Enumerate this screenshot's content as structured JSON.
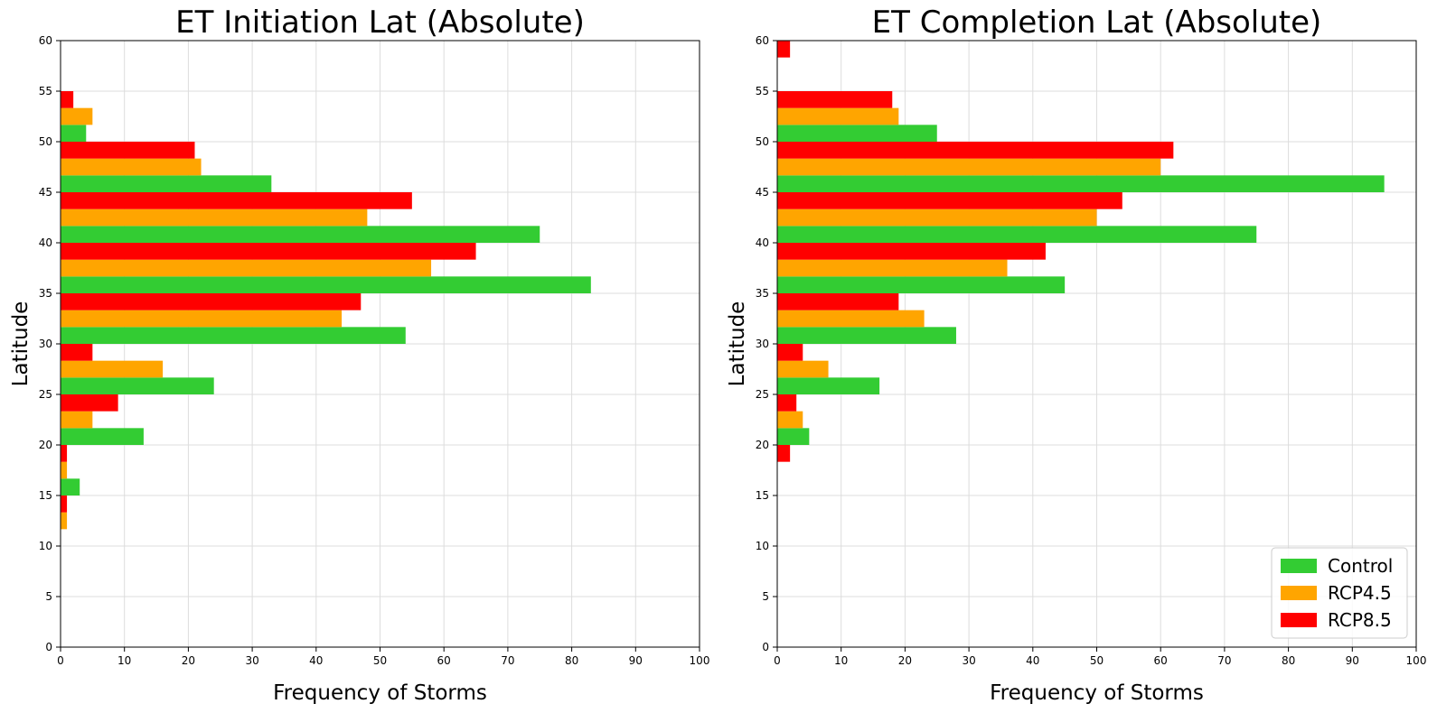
{
  "chart_data": [
    {
      "type": "bar",
      "orientation": "horizontal",
      "title": "ET Initiation Lat (Absolute)",
      "xlabel": "Frequency of Storms",
      "ylabel": "Latitude",
      "xlim": [
        0,
        100
      ],
      "ylim": [
        0,
        60
      ],
      "xticks": [
        0,
        10,
        20,
        30,
        40,
        50,
        60,
        70,
        80,
        90,
        100
      ],
      "yticks": [
        0,
        5,
        10,
        15,
        20,
        25,
        30,
        35,
        40,
        45,
        50,
        55,
        60
      ],
      "grid": true,
      "legend": null,
      "bin_width": 5,
      "bin_starts": [
        10,
        15,
        20,
        25,
        30,
        35,
        40,
        45,
        50,
        55
      ],
      "series": [
        {
          "name": "Control",
          "color": "#33cc33",
          "values": [
            0,
            3,
            13,
            24,
            54,
            83,
            75,
            33,
            4,
            0
          ]
        },
        {
          "name": "RCP4.5",
          "color": "#ffa500",
          "values": [
            1,
            1,
            5,
            16,
            44,
            58,
            48,
            22,
            5,
            0
          ]
        },
        {
          "name": "RCP8.5",
          "color": "#ff0000",
          "values": [
            1,
            1,
            9,
            5,
            47,
            65,
            55,
            21,
            2,
            0
          ]
        }
      ]
    },
    {
      "type": "bar",
      "orientation": "horizontal",
      "title": "ET Completion Lat (Absolute)",
      "xlabel": "Frequency of Storms",
      "ylabel": "Latitude",
      "xlim": [
        0,
        100
      ],
      "ylim": [
        0,
        60
      ],
      "xticks": [
        0,
        10,
        20,
        30,
        40,
        50,
        60,
        70,
        80,
        90,
        100
      ],
      "yticks": [
        0,
        5,
        10,
        15,
        20,
        25,
        30,
        35,
        40,
        45,
        50,
        55,
        60
      ],
      "grid": true,
      "legend": "lower-right",
      "bin_width": 5,
      "bin_starts": [
        15,
        20,
        25,
        30,
        35,
        40,
        45,
        50,
        55
      ],
      "series": [
        {
          "name": "Control",
          "color": "#33cc33",
          "values": [
            0,
            5,
            16,
            28,
            45,
            75,
            95,
            25,
            0
          ]
        },
        {
          "name": "RCP4.5",
          "color": "#ffa500",
          "values": [
            0,
            4,
            8,
            23,
            36,
            50,
            60,
            19,
            0
          ]
        },
        {
          "name": "RCP8.5",
          "color": "#ff0000",
          "values": [
            2,
            3,
            4,
            19,
            42,
            54,
            62,
            18,
            2
          ]
        }
      ]
    }
  ]
}
